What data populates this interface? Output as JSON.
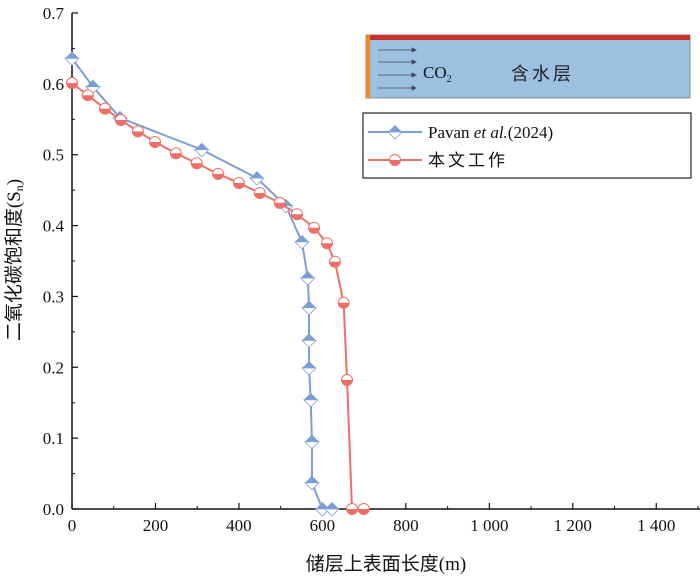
{
  "chart_data": {
    "type": "line",
    "title": "",
    "xlabel": "储层上表面长度(m)",
    "ylabel": "二氧化碳饱和度(Sn)",
    "ylabel_main": "二氧化碳饱和度(S",
    "ylabel_sub": "n",
    "ylabel_end": ")",
    "xlim": [
      0,
      1500
    ],
    "ylim": [
      0,
      0.7
    ],
    "xticks": [
      0,
      200,
      400,
      600,
      800,
      1000,
      1200,
      1400
    ],
    "xtick_labels": [
      "0",
      "200",
      "400",
      "600",
      "800",
      "1 000",
      "1 200",
      "1 400"
    ],
    "yticks": [
      0,
      0.1,
      0.2,
      0.3,
      0.4,
      0.5,
      0.6,
      0.7
    ],
    "ytick_labels": [
      "0.0",
      "0.1",
      "0.2",
      "0.3",
      "0.4",
      "0.5",
      "0.6",
      "0.7"
    ],
    "grid": false,
    "legend_position": "top-right",
    "series": [
      {
        "name": "Pavan et al.(2024)",
        "name_prefix": "Pavan ",
        "name_italic": "et al.",
        "name_suffix": "(2024)",
        "color": "#7b9fd4",
        "marker": "half-filled-diamond",
        "x": [
          0,
          50,
          115,
          311,
          443,
          512,
          551,
          565,
          568,
          568,
          568,
          572,
          575,
          575,
          600,
          623
        ],
        "y": [
          0.636,
          0.596,
          0.552,
          0.507,
          0.467,
          0.428,
          0.377,
          0.326,
          0.284,
          0.238,
          0.199,
          0.154,
          0.095,
          0.037,
          0.0,
          0.0
        ]
      },
      {
        "name": "本文工作",
        "color": "#ee6f68",
        "marker": "half-filled-circle",
        "x": [
          0,
          38,
          79,
          117,
          158,
          199,
          249,
          299,
          350,
          400,
          450,
          498,
          539,
          580,
          611,
          630,
          651,
          659,
          671,
          699
        ],
        "y": [
          0.601,
          0.584,
          0.565,
          0.549,
          0.533,
          0.518,
          0.502,
          0.488,
          0.473,
          0.46,
          0.446,
          0.432,
          0.416,
          0.397,
          0.375,
          0.349,
          0.291,
          0.182,
          0.0,
          0.0
        ]
      }
    ],
    "inset": {
      "gas_label": "CO",
      "gas_subscript": "2",
      "layer_label": "含水层",
      "colors": {
        "aquifer": "#9cc0e0",
        "caprock": "#c8302c",
        "injection": "#f08a24"
      }
    }
  }
}
